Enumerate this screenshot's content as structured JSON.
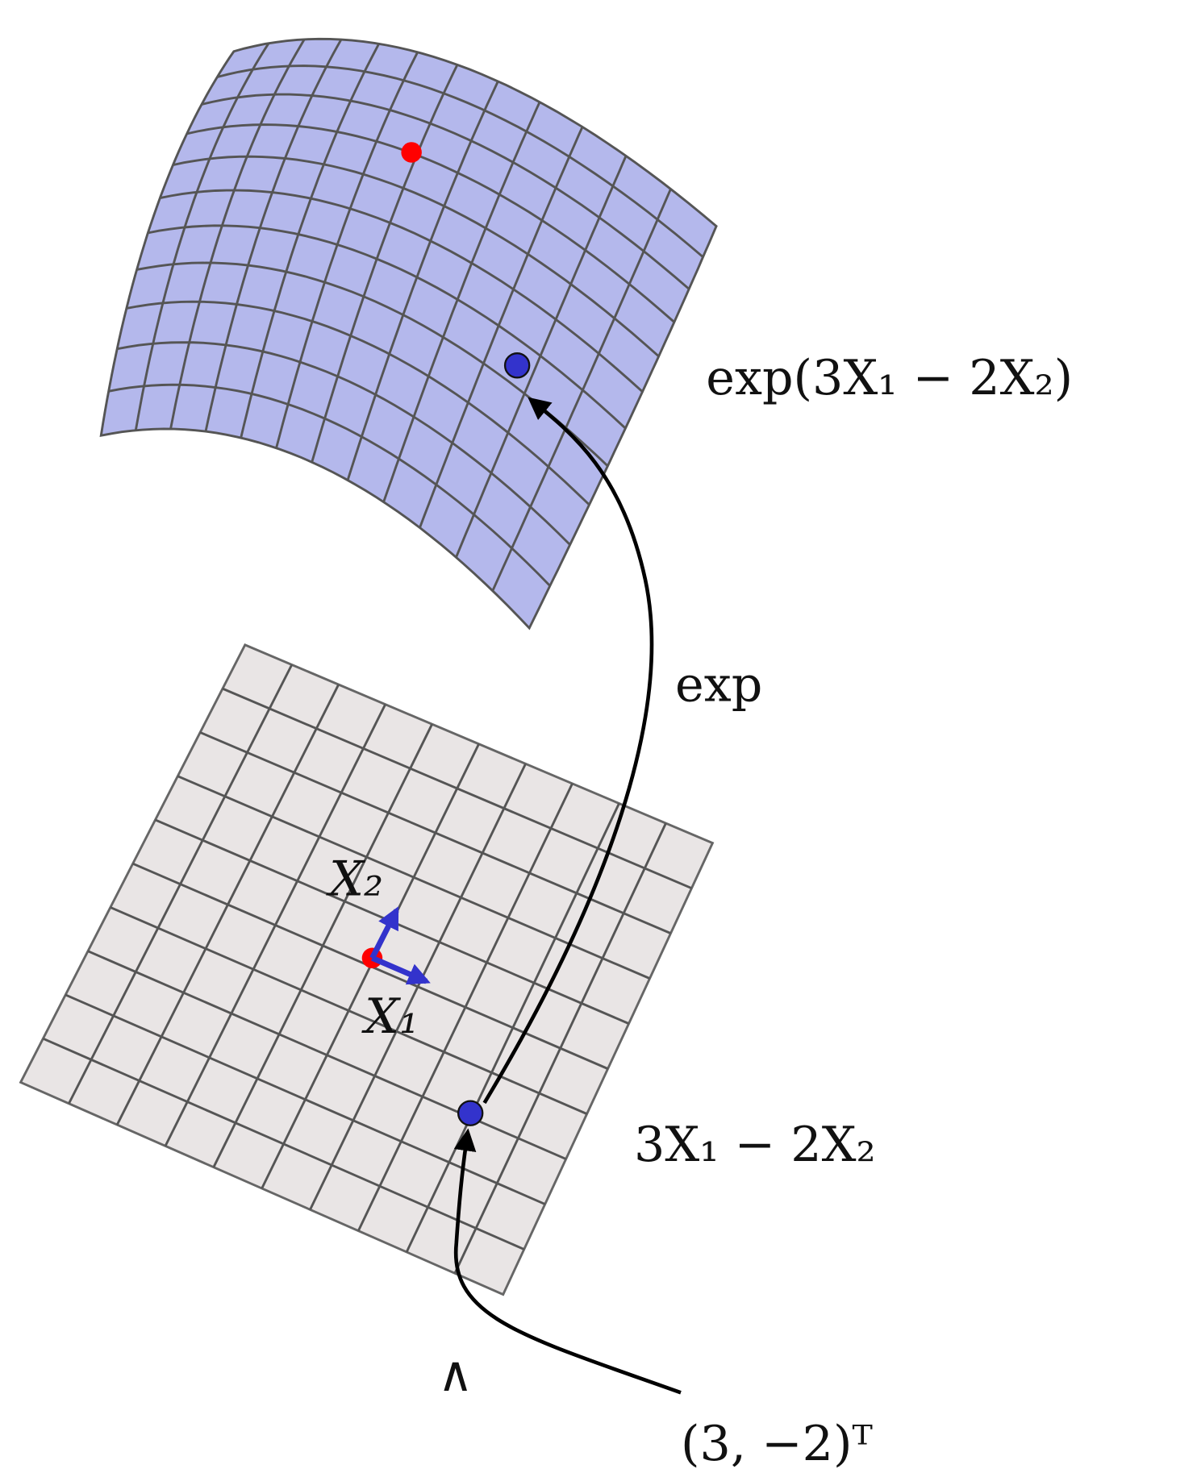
{
  "labels": {
    "exp_point": "exp(3X₁ − 2X₂)",
    "exp_map": "exp",
    "tangent_point": "3X₁ − 2X₂",
    "basis_x2": "X₂",
    "basis_x1": "X₁",
    "hat": "∧",
    "vector": "(3, −2)ᵀ"
  }
}
